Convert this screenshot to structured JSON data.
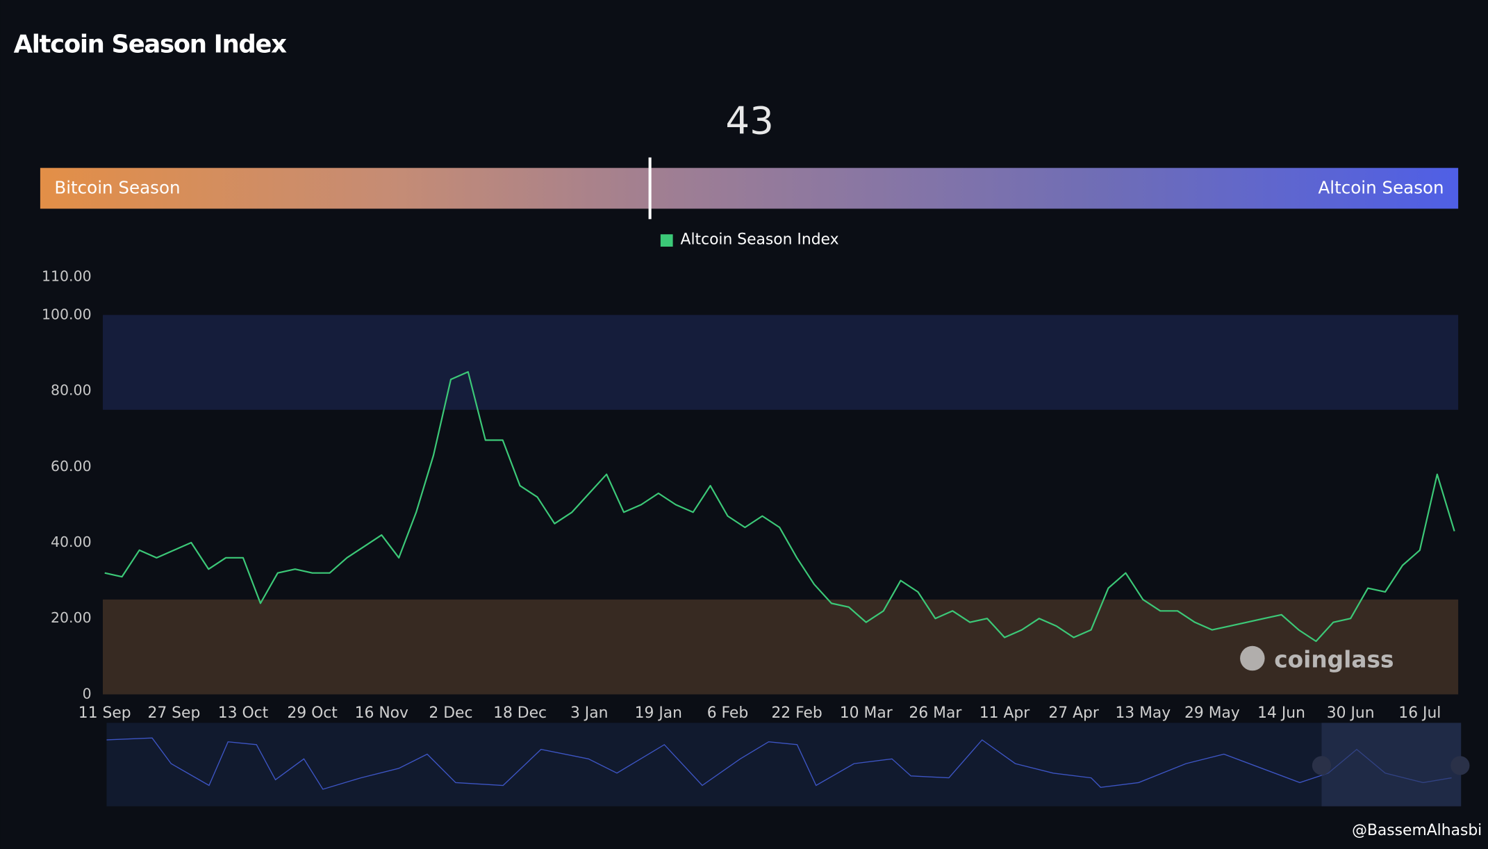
{
  "header": {
    "title": "Altcoin Season Index",
    "footer": "@BassemAlhasbi",
    "watermark": "coinglass"
  },
  "gauge": {
    "value": 43,
    "range": [
      0,
      100
    ],
    "left_label": "Bitcoin Season",
    "right_label": "Altcoin Season"
  },
  "chart_data": {
    "type": "line",
    "categories": [
      "11 Sep",
      null,
      null,
      null,
      "27 Sep",
      null,
      null,
      null,
      "13 Oct",
      null,
      null,
      null,
      "29 Oct",
      null,
      null,
      null,
      "16 Nov",
      null,
      null,
      null,
      "2 Dec",
      null,
      null,
      null,
      "18 Dec",
      null,
      null,
      null,
      "3 Jan",
      null,
      null,
      null,
      "19 Jan",
      null,
      null,
      null,
      "6 Feb",
      null,
      null,
      null,
      "22 Feb",
      null,
      null,
      null,
      "10 Mar",
      null,
      null,
      null,
      "26 Mar",
      null,
      null,
      null,
      "11 Apr",
      null,
      null,
      null,
      "27 Apr",
      null,
      null,
      null,
      "13 May",
      null,
      null,
      null,
      "29 May",
      null,
      null,
      null,
      "14 Jun",
      null,
      null,
      null,
      "30 Jun",
      null,
      null,
      null,
      "16 Jul",
      null,
      null
    ],
    "series": [
      {
        "name": "Altcoin Season Index",
        "color": "#3cc978",
        "values": [
          32,
          31,
          38,
          36,
          38,
          40,
          33,
          36,
          36,
          24,
          32,
          33,
          32,
          32,
          36,
          39,
          42,
          36,
          48,
          63,
          83,
          85,
          67,
          67,
          55,
          52,
          45,
          48,
          53,
          58,
          48,
          50,
          53,
          50,
          48,
          55,
          47,
          44,
          47,
          44,
          36,
          29,
          24,
          23,
          19,
          22,
          30,
          27,
          20,
          22,
          19,
          20,
          15,
          17,
          20,
          18,
          15,
          17,
          28,
          32,
          25,
          22,
          22,
          19,
          17,
          18,
          19,
          20,
          21,
          17,
          14,
          19,
          20,
          28,
          27,
          34,
          38,
          58,
          43
        ]
      }
    ],
    "ylim": [
      0,
      110
    ],
    "yticks": [
      0,
      {
        "value": 20,
        "label": "20.00"
      },
      {
        "value": 40,
        "label": "40.00"
      },
      {
        "value": 60,
        "label": "60.00"
      },
      {
        "value": 80,
        "label": "80.00"
      },
      {
        "value": 100,
        "label": "100.00"
      },
      {
        "value": 110,
        "label": "110.00"
      }
    ],
    "bands": [
      {
        "from": 75,
        "to": 100,
        "color": "#151d3b"
      },
      {
        "from": 0,
        "to": 25,
        "color": "#372a22"
      }
    ]
  }
}
